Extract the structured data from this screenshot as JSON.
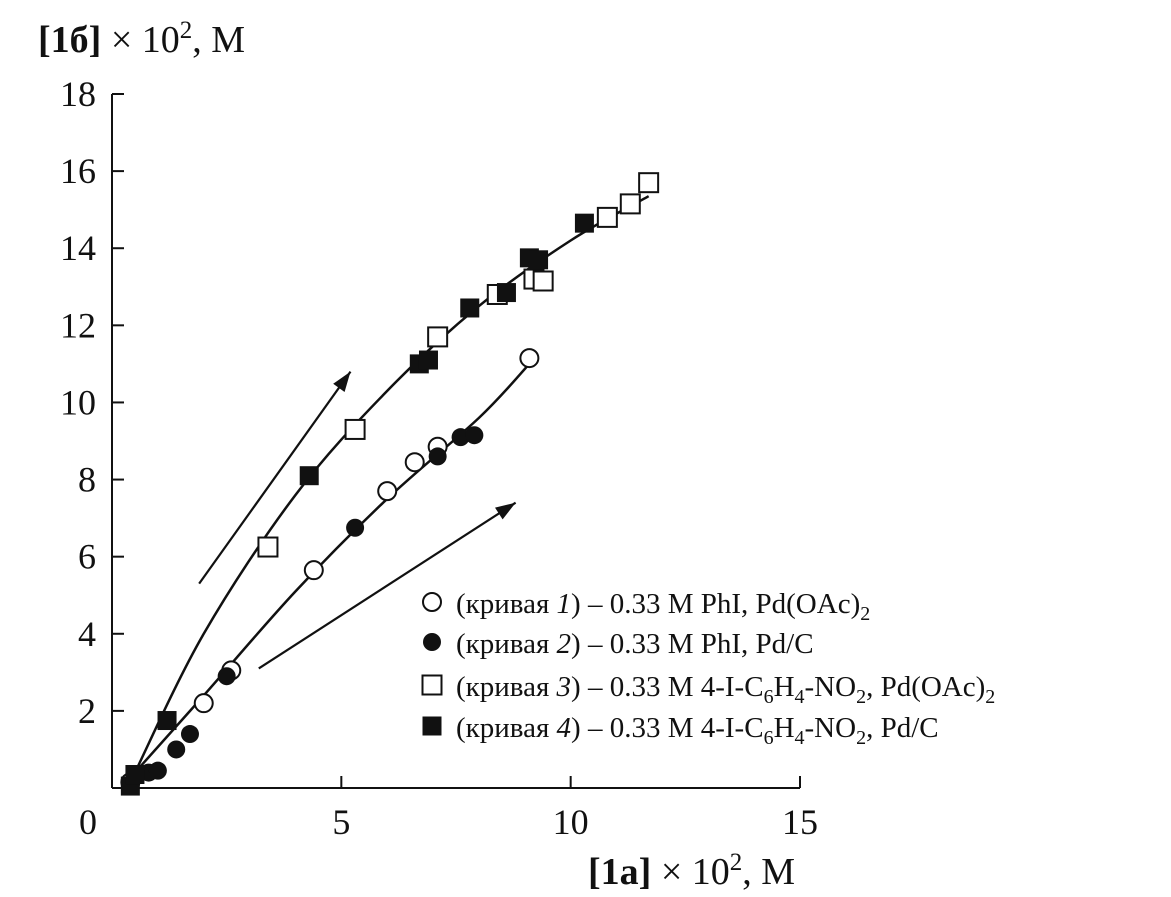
{
  "chart_data": {
    "type": "scatter",
    "x_axis": {
      "label_bold": "[1a]",
      "label_rest": " × 10",
      "label_sup": "2",
      "label_unit": ", M",
      "range": [
        0,
        15
      ],
      "ticks": [
        0,
        5,
        10,
        15
      ],
      "tick_labels": [
        "0",
        "5",
        "10",
        "15"
      ]
    },
    "y_axis": {
      "label_bold": "[1б]",
      "label_rest": " × 10",
      "label_sup": "2",
      "label_unit": ", M",
      "range": [
        0,
        18
      ],
      "ticks": [
        2,
        4,
        6,
        8,
        10,
        12,
        14,
        16,
        18
      ],
      "tick_labels": [
        "2",
        "4",
        "6",
        "8",
        "10",
        "12",
        "14",
        "16",
        "18"
      ]
    },
    "grid": false,
    "legend_position": "bottom-right",
    "series": [
      {
        "marker": "open-circle",
        "legend_prefix": "(кривая ",
        "legend_num": "1",
        "legend_suffix": ") – 0.33 M PhI, Pd(OAc)",
        "legend_sub": "2",
        "legend_tail": "",
        "points": [
          [
            0.4,
            0.15
          ],
          [
            2.0,
            2.2
          ],
          [
            2.6,
            3.05
          ],
          [
            4.4,
            5.65
          ],
          [
            6.0,
            7.7
          ],
          [
            6.6,
            8.45
          ],
          [
            7.1,
            8.85
          ],
          [
            9.1,
            11.15
          ]
        ]
      },
      {
        "marker": "filled-circle",
        "legend_prefix": "(кривая ",
        "legend_num": "2",
        "legend_suffix": ") – 0.33 M PhI, Pd/C",
        "legend_sub": "",
        "legend_tail": "",
        "points": [
          [
            0.5,
            0.3
          ],
          [
            0.8,
            0.4
          ],
          [
            1.0,
            0.45
          ],
          [
            1.4,
            1.0
          ],
          [
            1.7,
            1.4
          ],
          [
            2.5,
            2.9
          ],
          [
            5.3,
            6.75
          ],
          [
            7.1,
            8.6
          ],
          [
            7.6,
            9.1
          ],
          [
            7.9,
            9.15
          ]
        ]
      },
      {
        "marker": "open-square",
        "legend_prefix": "(кривая ",
        "legend_num": "3",
        "legend_suffix": ") – 0.33 M 4-I-C",
        "legend_sub": "6",
        "legend_tail": "H4-NO2, Pd(OAc)2",
        "points": [
          [
            3.4,
            6.25
          ],
          [
            5.3,
            9.3
          ],
          [
            7.1,
            11.7
          ],
          [
            8.4,
            12.8
          ],
          [
            9.2,
            13.2
          ],
          [
            9.4,
            13.15
          ],
          [
            10.8,
            14.8
          ],
          [
            11.3,
            15.15
          ],
          [
            11.7,
            15.7
          ]
        ]
      },
      {
        "marker": "filled-square",
        "legend_prefix": "(кривая ",
        "legend_num": "4",
        "legend_suffix": ") – 0.33 M 4-I-C",
        "legend_sub": "6",
        "legend_tail": "H4-NO2, Pd/C",
        "points": [
          [
            0.4,
            0.05
          ],
          [
            0.5,
            0.35
          ],
          [
            1.2,
            1.75
          ],
          [
            4.3,
            8.1
          ],
          [
            6.7,
            11.0
          ],
          [
            6.9,
            11.1
          ],
          [
            7.8,
            12.45
          ],
          [
            8.6,
            12.85
          ],
          [
            9.1,
            13.75
          ],
          [
            9.3,
            13.7
          ],
          [
            10.3,
            14.65
          ]
        ]
      }
    ],
    "legend_lines": [
      {
        "text": "(кривая 1) – 0.33 M PhI, Pd(OAc)₂"
      },
      {
        "text": "(кривая 2) – 0.33 M PhI, Pd/C"
      },
      {
        "text": "(кривая 3) – 0.33 M 4-I-C₆H₄-NO₂, Pd(OAc)₂"
      },
      {
        "text": "(кривая 4) – 0.33 M 4-I-C₆H₄-NO₂, Pd/C"
      }
    ],
    "fit_curves": [
      {
        "for_series": [
          1,
          2
        ],
        "points": [
          [
            0.5,
            0.4
          ],
          [
            2.0,
            2.4
          ],
          [
            4.0,
            5.1
          ],
          [
            6.0,
            7.5
          ],
          [
            8.0,
            9.6
          ],
          [
            9.1,
            11.0
          ]
        ]
      },
      {
        "for_series": [
          3,
          4
        ],
        "points": [
          [
            0.5,
            0.4
          ],
          [
            2.0,
            4.0
          ],
          [
            4.0,
            7.6
          ],
          [
            6.0,
            10.3
          ],
          [
            8.0,
            12.5
          ],
          [
            10.0,
            14.2
          ],
          [
            11.7,
            15.35
          ]
        ]
      }
    ],
    "arrows": [
      {
        "from": [
          1.9,
          5.3
        ],
        "to": [
          5.2,
          10.8
        ]
      },
      {
        "from": [
          3.2,
          3.1
        ],
        "to": [
          8.8,
          7.4
        ]
      }
    ]
  }
}
